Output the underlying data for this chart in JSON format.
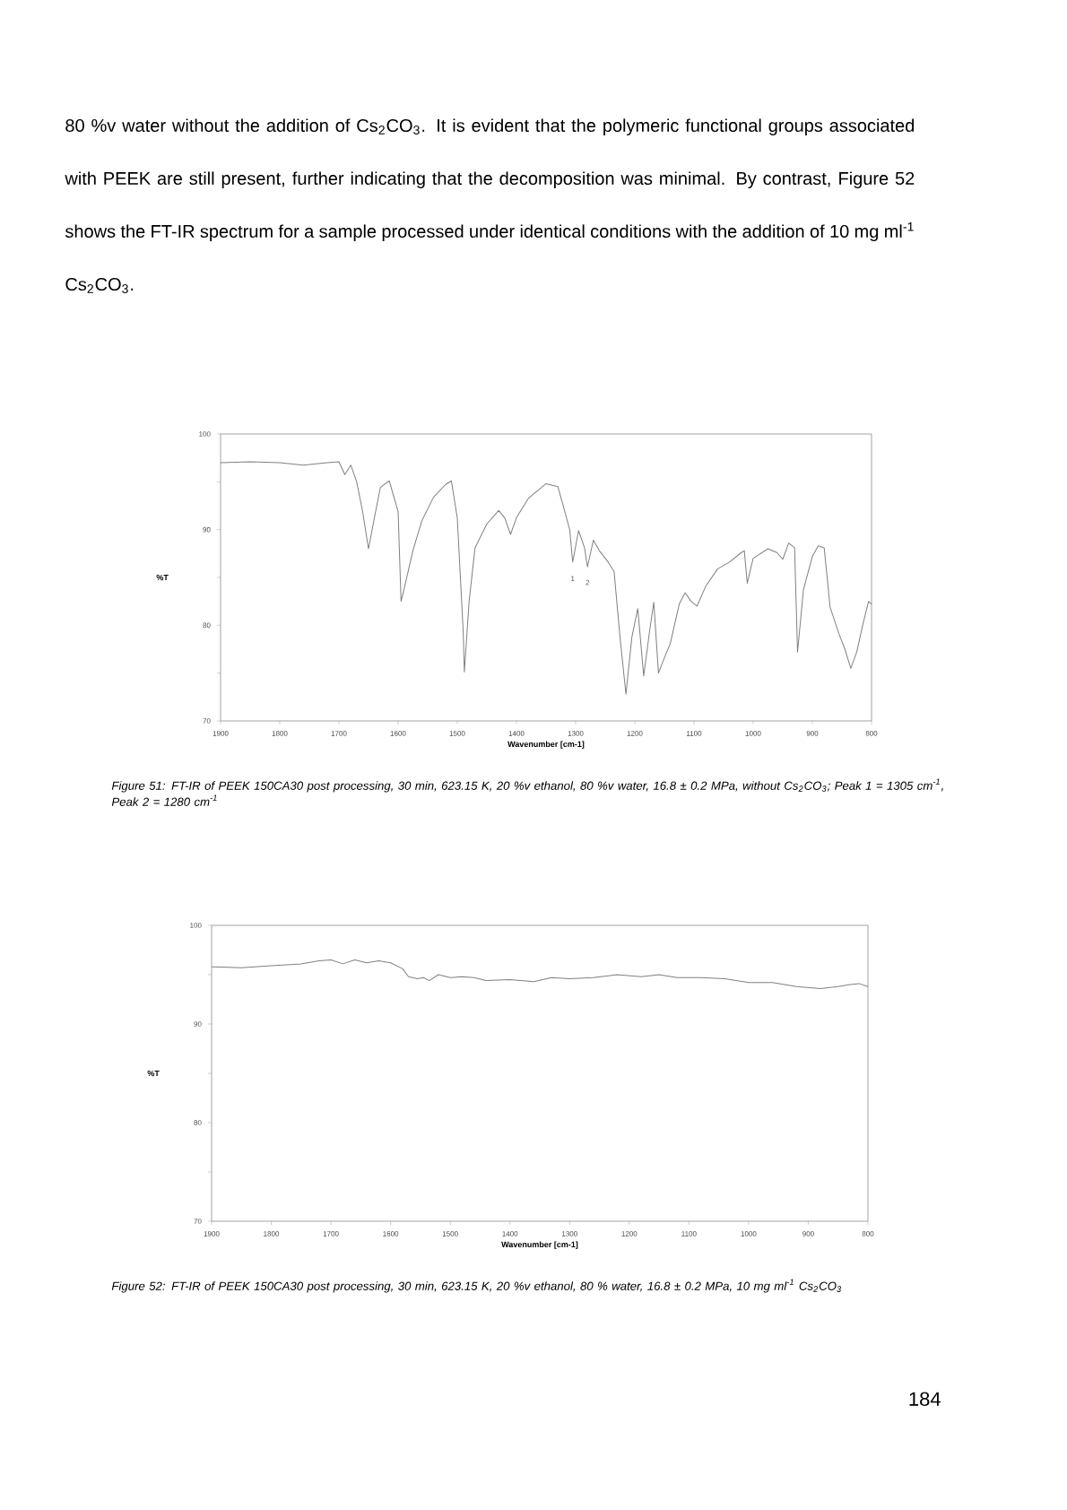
{
  "chart_data": [
    {
      "type": "line",
      "xlabel": "Wavenumber [cm-1]",
      "ylabel": "%T",
      "xlim": [
        1900,
        800
      ],
      "ylim": [
        70,
        100
      ],
      "xticks": [
        1900,
        1800,
        1700,
        1600,
        1500,
        1400,
        1300,
        1200,
        1100,
        1000,
        900,
        800
      ],
      "yticks": [
        70,
        {
          "value": 75,
          "label": null
        },
        80,
        {
          "value": 85,
          "label": null
        },
        90,
        {
          "value": 95,
          "label": null
        },
        100
      ],
      "annotations": [
        "80 %v water without the addition of Cs$_{2}$CO$_{3}$. It is evident that the polymeric functional groups associated with PEEK are still present, further indicating that the decomposition was minimal. By contrast, Figure 52 shows the FT-IR spectrum for a sample processed under identical conditions with the addition of 10 mg ml$^{-1}$ Cs$_{2}$CO$_{3}$.",
        "Figure 51: FT-IR of PEEK 150CA30 post processing, 30 min, 623.15 K, 20 %v ethanol, 80 %v water, 16.8 ± 0.2 MPa, without Cs$_{2}$CO$_{3}$; Peak 1 = 1305 cm$^{-1}$, Peak 2 = 1280 cm$^{-1}$",
        {
          "text": "1",
          "x": 1305,
          "y": 85.8
        },
        {
          "text": "2",
          "x": 1280,
          "y": 85.4
        }
      ],
      "marker": "none",
      "line_style": "solid",
      "series": [
        {
          "color": "#808080",
          "x": [
            1900,
            1850,
            1800,
            1760,
            1720,
            1700,
            1690,
            1680,
            1670,
            1660,
            1650,
            1640,
            1630,
            1615,
            1600,
            1595,
            1590,
            1575,
            1560,
            1540,
            1520,
            1510,
            1500,
            1490,
            1488,
            1480,
            1470,
            1450,
            1430,
            1420,
            1410,
            1400,
            1380,
            1350,
            1330,
            1310,
            1305,
            1295,
            1285,
            1280,
            1270,
            1260,
            1245,
            1235,
            1225,
            1215,
            1205,
            1195,
            1185,
            1175,
            1168,
            1160,
            1150,
            1140,
            1125,
            1115,
            1105,
            1095,
            1080,
            1060,
            1040,
            1020,
            1015,
            1010,
            1000,
            975,
            960,
            950,
            940,
            930,
            925,
            915,
            900,
            890,
            880,
            870,
            855,
            845,
            835,
            825,
            815,
            805,
            800
          ],
          "values": [
            97.0,
            97.1,
            97.0,
            96.75,
            97.0,
            97.1,
            95.75,
            96.75,
            95.0,
            91.9,
            88.0,
            91.25,
            94.4,
            95.1,
            91.9,
            82.5,
            83.75,
            87.8,
            90.9,
            93.4,
            94.7,
            95.1,
            91.25,
            79.4,
            75.1,
            82.5,
            88.1,
            90.6,
            92.0,
            91.25,
            89.5,
            91.25,
            93.25,
            94.8,
            94.5,
            90.0,
            86.6,
            89.9,
            88.1,
            86.1,
            88.9,
            87.8,
            86.6,
            85.6,
            78.75,
            72.8,
            78.75,
            81.75,
            74.7,
            79.4,
            82.4,
            75.0,
            76.6,
            78.1,
            82.2,
            83.4,
            82.5,
            82.0,
            84.1,
            85.9,
            86.6,
            87.6,
            87.8,
            84.4,
            87.0,
            88.0,
            87.6,
            86.9,
            88.6,
            88.1,
            77.2,
            83.75,
            87.2,
            88.3,
            88.1,
            81.9,
            79.1,
            77.5,
            75.5,
            77.2,
            80.0,
            82.5,
            82.2
          ]
        }
      ]
    },
    {
      "type": "line",
      "xlabel": "Wavenumber [cm-1]",
      "ylabel": "%T",
      "xlim": [
        1900,
        800
      ],
      "ylim": [
        70,
        100
      ],
      "xticks": [
        1900,
        1800,
        1700,
        1600,
        1500,
        1400,
        1300,
        1200,
        1100,
        1000,
        900,
        800
      ],
      "yticks": [
        70,
        {
          "value": 75,
          "label": null
        },
        80,
        {
          "value": 85,
          "label": null
        },
        90,
        {
          "value": 95,
          "label": null
        },
        100
      ],
      "annotations": [
        "Figure 52: FT-IR of PEEK 150CA30 post processing, 30 min, 623.15 K, 20 %v ethanol, 80 % water, 16.8 ± 0.2 MPa, 10 mg ml$^{-1}$ Cs$_{2}$CO$_{3}$",
        "184"
      ],
      "marker": "none",
      "line_style": "solid",
      "series": [
        {
          "color": "#808080",
          "x": [
            1900,
            1850,
            1800,
            1750,
            1720,
            1700,
            1680,
            1660,
            1640,
            1620,
            1600,
            1580,
            1570,
            1555,
            1545,
            1535,
            1520,
            1500,
            1480,
            1460,
            1440,
            1400,
            1360,
            1330,
            1300,
            1260,
            1220,
            1180,
            1150,
            1120,
            1080,
            1040,
            1000,
            960,
            920,
            880,
            850,
            830,
            815,
            800
          ],
          "values": [
            95.8,
            95.7,
            95.9,
            96.1,
            96.4,
            96.5,
            96.1,
            96.5,
            96.2,
            96.4,
            96.2,
            95.6,
            94.8,
            94.6,
            94.7,
            94.4,
            95.0,
            94.7,
            94.8,
            94.7,
            94.4,
            94.5,
            94.3,
            94.7,
            94.6,
            94.7,
            95.0,
            94.8,
            95.0,
            94.7,
            94.7,
            94.6,
            94.2,
            94.2,
            93.8,
            93.6,
            93.8,
            94.0,
            94.1,
            93.8
          ]
        }
      ]
    }
  ]
}
